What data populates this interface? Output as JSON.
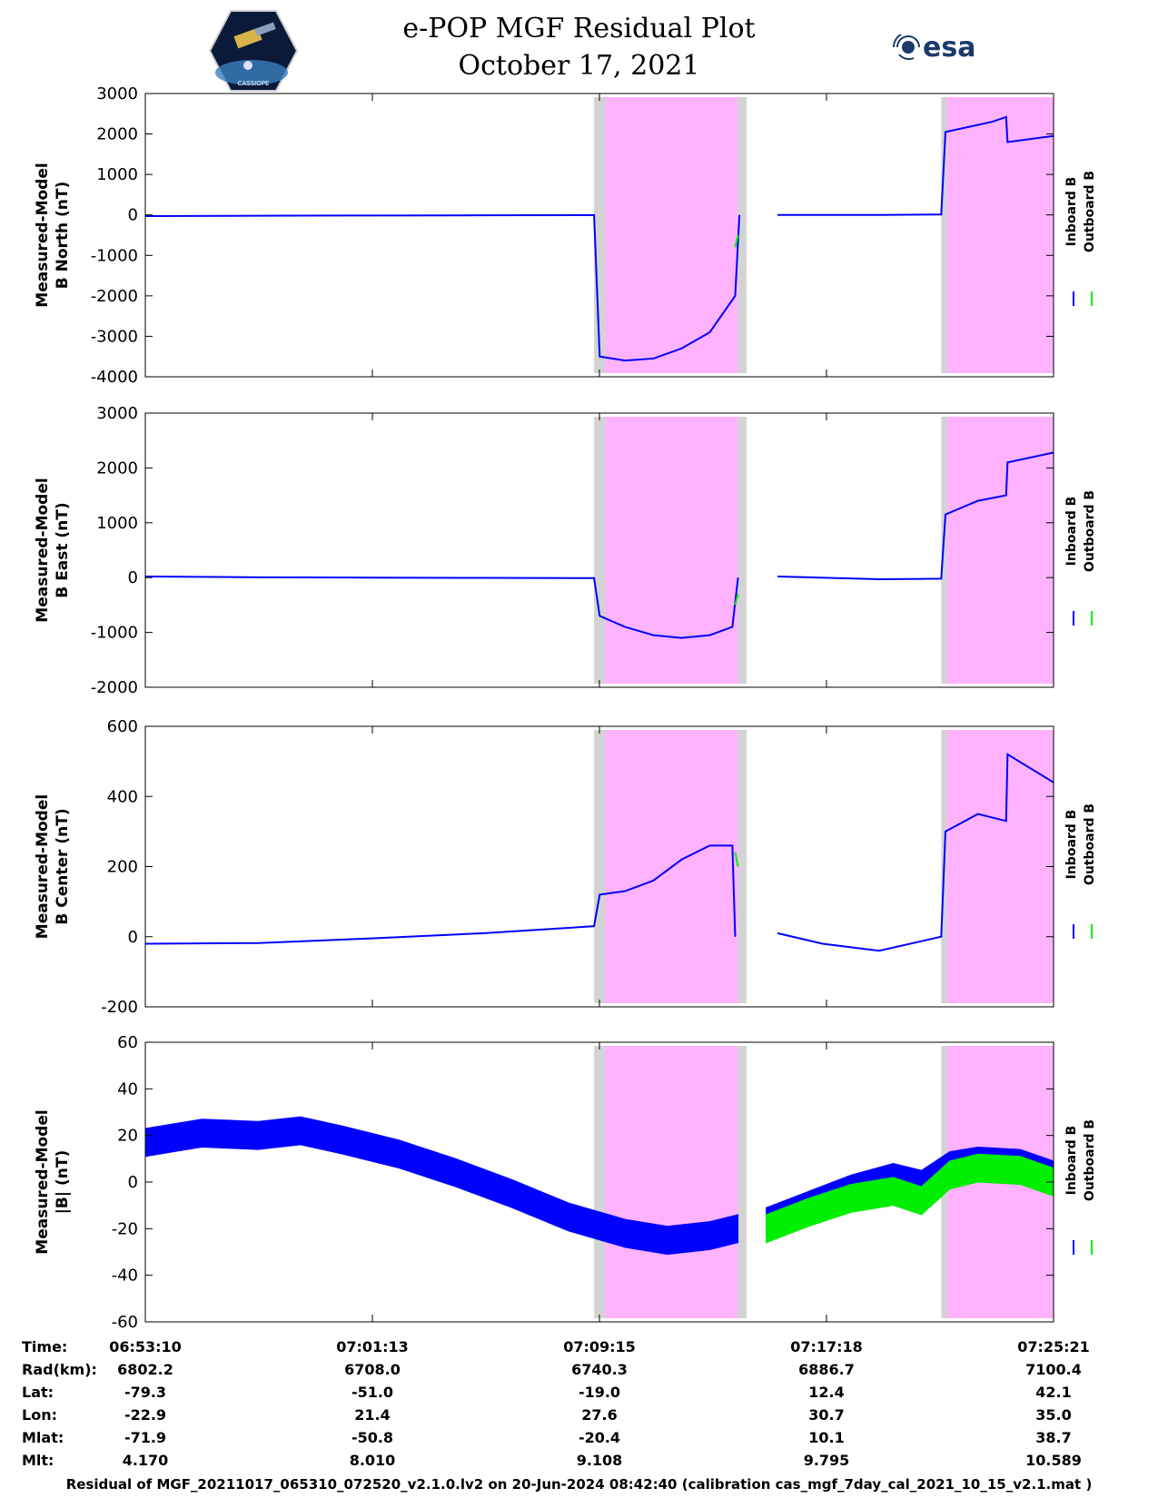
{
  "header": {
    "title": "e-POP MGF Residual Plot",
    "date": "October 17, 2021",
    "esa_logo_text": "esa",
    "cassiope_logo_text": "CASSIOPE"
  },
  "colors": {
    "inboard": "#0000ff",
    "outboard": "#00ee00",
    "eclipse": "#ffb3ff",
    "transition": "#d3d3d3"
  },
  "chart_data": [
    {
      "type": "line",
      "ylabel": [
        "Measured-Model",
        "B North (nT)"
      ],
      "ylim": [
        -4000,
        3000
      ],
      "yticks": [
        3000,
        2000,
        1000,
        0,
        -1000,
        -2000,
        -3000,
        -4000
      ],
      "legend": [
        "Inboard B",
        "Outboard B"
      ],
      "x_minutes_range": [
        0,
        32.18
      ],
      "shaded_regions": [
        {
          "start": 16.3,
          "end": 21.0,
          "color": "eclipse"
        },
        {
          "start": 15.9,
          "end": 16.3,
          "color": "transition"
        },
        {
          "start": 21.0,
          "end": 21.3,
          "color": "transition"
        },
        {
          "start": 28.4,
          "end": 32.18,
          "color": "eclipse"
        },
        {
          "start": 28.2,
          "end": 28.4,
          "color": "transition"
        }
      ],
      "series": [
        {
          "name": "Inboard B",
          "color": "inboard",
          "segments": [
            [
              [
                0,
                -30
              ],
              [
                4,
                -20
              ],
              [
                8,
                -15
              ],
              [
                12,
                -10
              ],
              [
                15.9,
                -5
              ],
              [
                16.1,
                -3500
              ],
              [
                17,
                -3600
              ],
              [
                18,
                -3550
              ],
              [
                19,
                -3300
              ],
              [
                20,
                -2900
              ],
              [
                20.9,
                -2000
              ],
              [
                21.05,
                0
              ]
            ],
            [
              [
                22.4,
                0
              ],
              [
                26,
                0
              ],
              [
                28.2,
                10
              ],
              [
                28.35,
                2050
              ],
              [
                30,
                2300
              ],
              [
                30.5,
                2420
              ],
              [
                30.55,
                1800
              ],
              [
                32.18,
                1950
              ]
            ]
          ]
        },
        {
          "name": "Outboard B",
          "color": "outboard",
          "segments": [
            [
              [
                20.9,
                -800
              ],
              [
                21.0,
                -500
              ]
            ]
          ]
        }
      ]
    },
    {
      "type": "line",
      "ylabel": [
        "Measured-Model",
        "B East (nT)"
      ],
      "ylim": [
        -2000,
        3000
      ],
      "yticks": [
        3000,
        2000,
        1000,
        0,
        -1000,
        -2000
      ],
      "legend": [
        "Inboard B",
        "Outboard B"
      ],
      "x_minutes_range": [
        0,
        32.18
      ],
      "shaded_regions": [
        {
          "start": 16.3,
          "end": 21.0,
          "color": "eclipse"
        },
        {
          "start": 15.9,
          "end": 16.3,
          "color": "transition"
        },
        {
          "start": 21.0,
          "end": 21.3,
          "color": "transition"
        },
        {
          "start": 28.4,
          "end": 32.18,
          "color": "eclipse"
        },
        {
          "start": 28.2,
          "end": 28.4,
          "color": "transition"
        }
      ],
      "series": [
        {
          "name": "Inboard B",
          "color": "inboard",
          "segments": [
            [
              [
                0,
                20
              ],
              [
                4,
                5
              ],
              [
                8,
                0
              ],
              [
                12,
                -5
              ],
              [
                15.9,
                -10
              ],
              [
                16.1,
                -700
              ],
              [
                17,
                -900
              ],
              [
                18,
                -1050
              ],
              [
                19,
                -1100
              ],
              [
                20,
                -1050
              ],
              [
                20.8,
                -900
              ],
              [
                21.0,
                0
              ]
            ],
            [
              [
                22.4,
                20
              ],
              [
                26,
                -30
              ],
              [
                28.2,
                -20
              ],
              [
                28.35,
                1150
              ],
              [
                29.5,
                1400
              ],
              [
                30.5,
                1500
              ],
              [
                30.55,
                2100
              ],
              [
                32.18,
                2280
              ]
            ]
          ]
        },
        {
          "name": "Outboard B",
          "color": "outboard",
          "segments": [
            [
              [
                20.9,
                -500
              ],
              [
                21.0,
                -300
              ]
            ]
          ]
        }
      ]
    },
    {
      "type": "line",
      "ylabel": [
        "Measured-Model",
        "B Center (nT)"
      ],
      "ylim": [
        -200,
        600
      ],
      "yticks": [
        600,
        400,
        200,
        0,
        -200
      ],
      "legend": [
        "Inboard B",
        "Outboard B"
      ],
      "x_minutes_range": [
        0,
        32.18
      ],
      "shaded_regions": [
        {
          "start": 16.3,
          "end": 21.0,
          "color": "eclipse"
        },
        {
          "start": 15.9,
          "end": 16.3,
          "color": "transition"
        },
        {
          "start": 21.0,
          "end": 21.3,
          "color": "transition"
        },
        {
          "start": 28.4,
          "end": 32.18,
          "color": "eclipse"
        },
        {
          "start": 28.2,
          "end": 28.4,
          "color": "transition"
        }
      ],
      "series": [
        {
          "name": "Inboard B",
          "color": "inboard",
          "segments": [
            [
              [
                0,
                -20
              ],
              [
                4,
                -18
              ],
              [
                8,
                -5
              ],
              [
                12,
                10
              ],
              [
                15.9,
                30
              ],
              [
                16.1,
                120
              ],
              [
                17,
                130
              ],
              [
                18,
                160
              ],
              [
                19,
                220
              ],
              [
                20,
                260
              ],
              [
                20.8,
                260
              ],
              [
                20.9,
                0
              ]
            ],
            [
              [
                22.4,
                10
              ],
              [
                24,
                -20
              ],
              [
                26,
                -40
              ],
              [
                28.2,
                0
              ],
              [
                28.35,
                300
              ],
              [
                29.5,
                350
              ],
              [
                30.5,
                330
              ],
              [
                30.55,
                520
              ],
              [
                32.18,
                440
              ]
            ]
          ]
        },
        {
          "name": "Outboard B",
          "color": "outboard",
          "segments": [
            [
              [
                20.9,
                240
              ],
              [
                21.0,
                200
              ]
            ]
          ]
        }
      ]
    },
    {
      "type": "line",
      "ylabel": [
        "Measured-Model",
        "|B| (nT)"
      ],
      "ylim": [
        -60,
        60
      ],
      "yticks": [
        60,
        40,
        20,
        0,
        -20,
        -40,
        -60
      ],
      "legend": [
        "Inboard B",
        "Outboard B"
      ],
      "x_minutes_range": [
        0,
        32.18
      ],
      "shaded_regions": [
        {
          "start": 16.3,
          "end": 21.0,
          "color": "eclipse"
        },
        {
          "start": 15.9,
          "end": 16.3,
          "color": "transition"
        },
        {
          "start": 21.0,
          "end": 21.3,
          "color": "transition"
        },
        {
          "start": 28.4,
          "end": 32.18,
          "color": "eclipse"
        },
        {
          "start": 28.2,
          "end": 28.4,
          "color": "transition"
        }
      ],
      "band_halfwidth": 6,
      "series": [
        {
          "name": "Inboard B",
          "color": "inboard",
          "segments": [
            [
              [
                0,
                17
              ],
              [
                2,
                21
              ],
              [
                4,
                20
              ],
              [
                5.5,
                22
              ],
              [
                7,
                18
              ],
              [
                9,
                12
              ],
              [
                11,
                4
              ],
              [
                13,
                -5
              ],
              [
                15,
                -15
              ],
              [
                17,
                -22
              ],
              [
                18.5,
                -25
              ],
              [
                20,
                -23
              ],
              [
                21.0,
                -20
              ]
            ],
            [
              [
                22.0,
                -17
              ],
              [
                23.5,
                -10
              ],
              [
                25,
                -3
              ],
              [
                26.5,
                2
              ],
              [
                27.5,
                -1
              ],
              [
                28.5,
                7
              ],
              [
                29.5,
                9
              ],
              [
                31,
                8
              ],
              [
                32.18,
                3
              ]
            ]
          ]
        },
        {
          "name": "Outboard B",
          "color": "outboard",
          "segments": [
            [
              [
                22.0,
                -20
              ],
              [
                23.5,
                -13
              ],
              [
                25,
                -7
              ],
              [
                26.5,
                -4
              ],
              [
                27.5,
                -8
              ],
              [
                28.5,
                3
              ],
              [
                29.5,
                6
              ],
              [
                31,
                5
              ],
              [
                32.18,
                0
              ]
            ]
          ]
        }
      ]
    }
  ],
  "x_ticks": [
    "06:53:10",
    "07:01:13",
    "07:09:15",
    "07:17:18",
    "07:25:21"
  ],
  "orbit_table": [
    {
      "label": "Time:",
      "values": [
        "06:53:10",
        "07:01:13",
        "07:09:15",
        "07:17:18",
        "07:25:21"
      ]
    },
    {
      "label": "Rad(km):",
      "values": [
        "6802.2",
        "6708.0",
        "6740.3",
        "6886.7",
        "7100.4"
      ]
    },
    {
      "label": "Lat:",
      "values": [
        "-79.3",
        "-51.0",
        "-19.0",
        "12.4",
        "42.1"
      ]
    },
    {
      "label": "Lon:",
      "values": [
        "-22.9",
        "21.4",
        "27.6",
        "30.7",
        "35.0"
      ]
    },
    {
      "label": "Mlat:",
      "values": [
        "-71.9",
        "-50.8",
        "-20.4",
        "10.1",
        "38.7"
      ]
    },
    {
      "label": "Mlt:",
      "values": [
        "4.170",
        "8.010",
        "9.108",
        "9.795",
        "10.589"
      ]
    }
  ],
  "footer": "Residual of MGF_20211017_065310_072520_v2.1.0.lv2 on 20-Jun-2024 08:42:40 (calibration cas_mgf_7day_cal_2021_10_15_v2.1.mat )"
}
